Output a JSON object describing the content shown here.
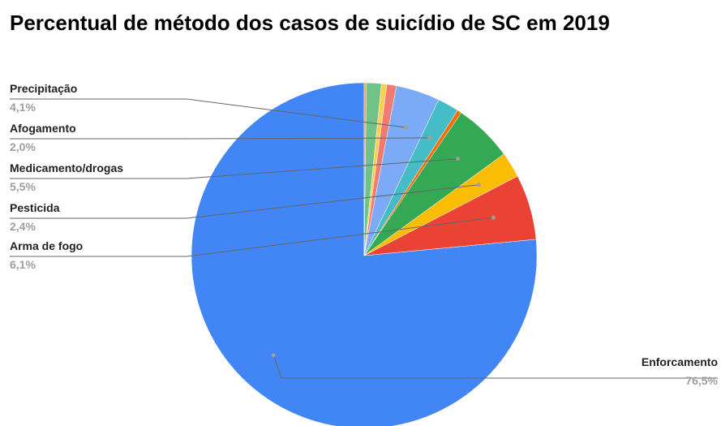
{
  "chart_data": {
    "type": "pie",
    "title": "Percentual de método dos casos de suicídio de SC em 2019",
    "slices": [
      {
        "name": "Enforcamento",
        "value": 76.5,
        "value_label": "76,5%",
        "color": "#4285f4",
        "labeled": true
      },
      {
        "name": "Arma de fogo",
        "value": 6.1,
        "value_label": "6,1%",
        "color": "#ea4335",
        "labeled": true
      },
      {
        "name": "Pesticida",
        "value": 2.4,
        "value_label": "2,4%",
        "color": "#fbbc04",
        "labeled": true
      },
      {
        "name": "Medicamento/drogas",
        "value": 5.5,
        "value_label": "5,5%",
        "color": "#34a853",
        "labeled": true
      },
      {
        "name": "",
        "value": 0.4,
        "value_label": "",
        "color": "#ff6d01",
        "labeled": false
      },
      {
        "name": "Afogamento",
        "value": 2.0,
        "value_label": "2,0%",
        "color": "#46bdc6",
        "labeled": true
      },
      {
        "name": "Precipitação",
        "value": 4.1,
        "value_label": "4,1%",
        "color": "#7baaf7",
        "labeled": true
      },
      {
        "name": "",
        "value": 0.9,
        "value_label": "",
        "color": "#f07b72",
        "labeled": false
      },
      {
        "name": "",
        "value": 0.5,
        "value_label": "",
        "color": "#fcd04f",
        "labeled": false
      },
      {
        "name": "",
        "value": 1.4,
        "value_label": "",
        "color": "#71c287",
        "labeled": false
      },
      {
        "name": "",
        "value": 0.2,
        "value_label": "",
        "color": "#ff994d",
        "labeled": false
      }
    ]
  }
}
